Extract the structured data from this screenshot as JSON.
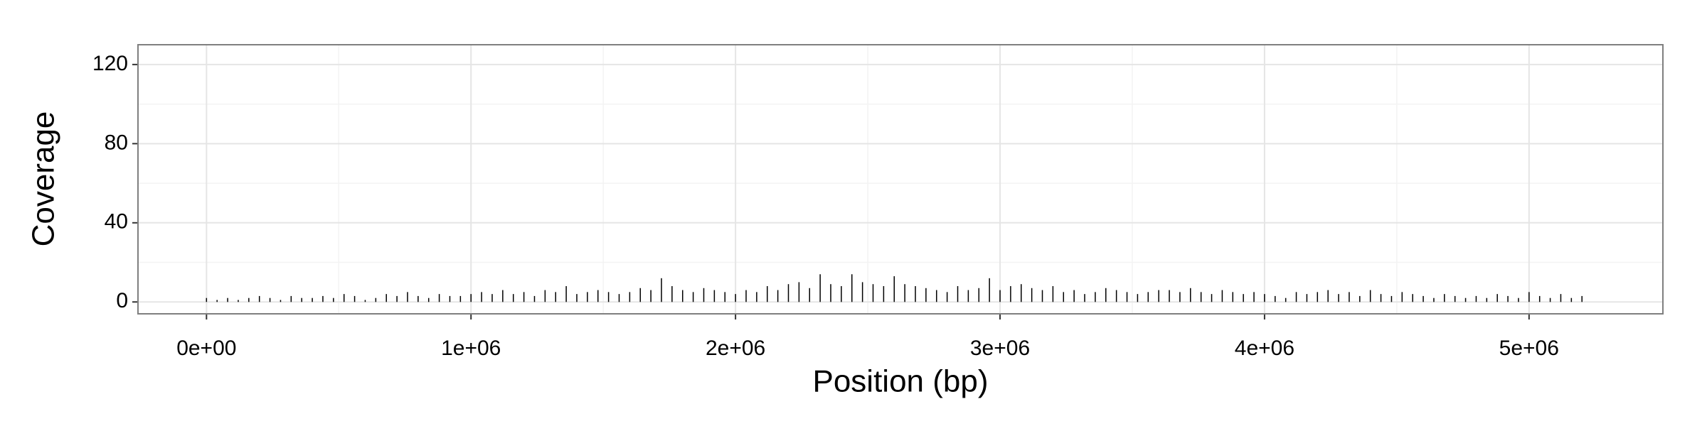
{
  "chart_data": {
    "type": "bar",
    "xlabel": "Position (bp)",
    "ylabel": "Coverage",
    "x": [
      0,
      40000,
      80000,
      120000,
      160000,
      200000,
      240000,
      280000,
      320000,
      360000,
      400000,
      440000,
      480000,
      520000,
      560000,
      600000,
      640000,
      680000,
      720000,
      760000,
      800000,
      840000,
      880000,
      920000,
      960000,
      1000000,
      1040000,
      1080000,
      1120000,
      1160000,
      1200000,
      1240000,
      1280000,
      1320000,
      1360000,
      1400000,
      1440000,
      1480000,
      1520000,
      1560000,
      1600000,
      1640000,
      1680000,
      1720000,
      1760000,
      1800000,
      1840000,
      1880000,
      1920000,
      1960000,
      2000000,
      2040000,
      2080000,
      2120000,
      2160000,
      2200000,
      2240000,
      2280000,
      2320000,
      2360000,
      2400000,
      2440000,
      2480000,
      2520000,
      2560000,
      2600000,
      2640000,
      2680000,
      2720000,
      2760000,
      2800000,
      2840000,
      2880000,
      2920000,
      2960000,
      3000000,
      3040000,
      3080000,
      3120000,
      3160000,
      3200000,
      3240000,
      3280000,
      3320000,
      3360000,
      3400000,
      3440000,
      3480000,
      3520000,
      3560000,
      3600000,
      3640000,
      3680000,
      3720000,
      3760000,
      3800000,
      3840000,
      3880000,
      3920000,
      3960000,
      4000000,
      4040000,
      4080000,
      4120000,
      4160000,
      4200000,
      4240000,
      4280000,
      4320000,
      4360000,
      4400000,
      4440000,
      4480000,
      4520000,
      4560000,
      4600000,
      4640000,
      4680000,
      4720000,
      4760000,
      4800000,
      4840000,
      4880000,
      4920000,
      4960000,
      5000000,
      5040000,
      5080000,
      5120000,
      5160000,
      5200000
    ],
    "values": [
      2,
      1,
      2,
      1,
      2,
      3,
      2,
      1,
      3,
      2,
      2,
      3,
      2,
      4,
      3,
      1,
      2,
      4,
      3,
      5,
      3,
      2,
      4,
      3,
      3,
      4,
      5,
      4,
      6,
      4,
      5,
      3,
      6,
      5,
      8,
      4,
      5,
      6,
      5,
      4,
      5,
      7,
      6,
      12,
      8,
      6,
      5,
      7,
      6,
      5,
      4,
      6,
      5,
      8,
      6,
      9,
      10,
      7,
      14,
      9,
      8,
      14,
      10,
      9,
      8,
      13,
      9,
      8,
      7,
      6,
      5,
      8,
      6,
      7,
      12,
      6,
      8,
      9,
      7,
      6,
      8,
      5,
      6,
      4,
      5,
      7,
      6,
      5,
      4,
      5,
      6,
      6,
      5,
      7,
      5,
      4,
      6,
      5,
      4,
      5,
      4,
      3,
      2,
      5,
      4,
      5,
      6,
      4,
      5,
      3,
      6,
      4,
      3,
      5,
      4,
      3,
      2,
      4,
      3,
      2,
      3,
      2,
      4,
      3,
      2,
      5,
      3,
      2,
      4,
      2,
      3
    ],
    "color": "#000000",
    "xlim": [
      -259000,
      5506000
    ],
    "xticks": [
      {
        "value": 0,
        "label": "0e+00"
      },
      {
        "value": 1000000,
        "label": "1e+06"
      },
      {
        "value": 2000000,
        "label": "2e+06"
      },
      {
        "value": 3000000,
        "label": "3e+06"
      },
      {
        "value": 4000000,
        "label": "4e+06"
      },
      {
        "value": 5000000,
        "label": "5e+06"
      }
    ],
    "ylim": [
      -6,
      130
    ],
    "yticks": [
      0,
      40,
      80,
      120
    ],
    "grid": true
  }
}
